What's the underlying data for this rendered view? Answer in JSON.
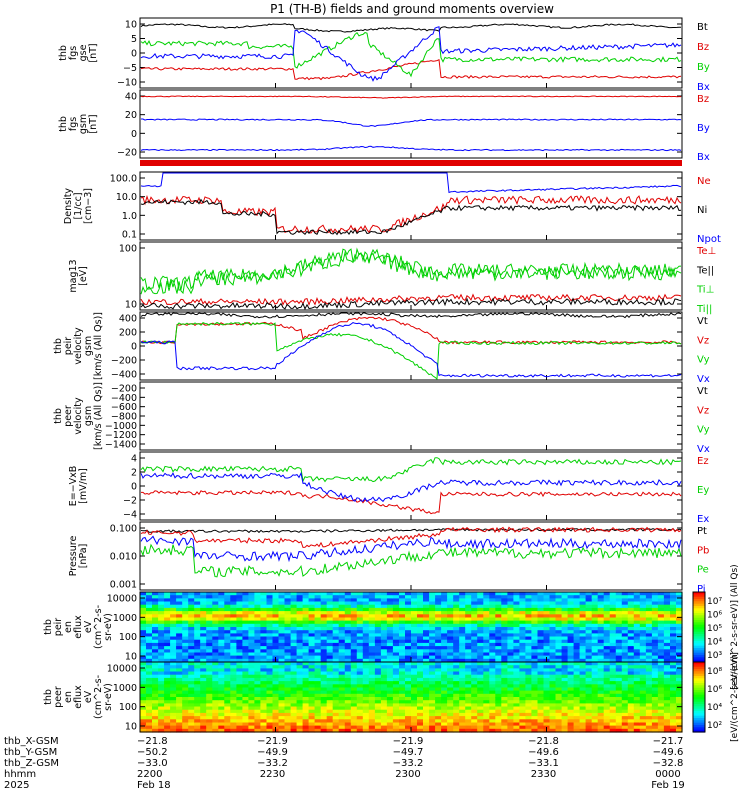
{
  "title": "P1 (TH-B) fields and ground moments overview",
  "colors": {
    "black": "#000000",
    "red": "#e00000",
    "green": "#00d000",
    "blue": "#0000ff"
  },
  "chart_data": [
    {
      "type": "line",
      "ylabel": [
        "thb",
        "fgs",
        "gse",
        "[nT]"
      ],
      "yticks": [
        "10",
        "5",
        "0",
        "−5",
        "−10"
      ],
      "ylim": [
        -11,
        11
      ],
      "series": [
        {
          "name": "Bt",
          "color": "black"
        },
        {
          "name": "Bz",
          "color": "red"
        },
        {
          "name": "By",
          "color": "green"
        },
        {
          "name": "Bx",
          "color": "blue"
        }
      ]
    },
    {
      "type": "line",
      "ylabel": [
        "thb",
        "fgs",
        "gsm",
        "[nT]"
      ],
      "yticks": [
        "40",
        "20",
        "0",
        "−20"
      ],
      "ylim": [
        -30,
        55
      ],
      "series": [
        {
          "name": "Bz",
          "color": "red"
        },
        {
          "name": "By",
          "color": "blue"
        },
        {
          "name": "Bx",
          "color": "blue"
        }
      ]
    },
    {
      "type": "line",
      "ylabel": [
        "Density",
        "[1/cc]",
        "[cm−3]"
      ],
      "yticks": [
        "100.0",
        "10.0",
        "1.0",
        "0.1"
      ],
      "log": true,
      "series": [
        {
          "name": "Ne",
          "color": "red"
        },
        {
          "name": "Ni",
          "color": "black"
        },
        {
          "name": "Npot",
          "color": "blue"
        }
      ]
    },
    {
      "type": "line",
      "ylabel": [
        "mag13",
        "[eV]"
      ],
      "yticks": [
        "100",
        "10"
      ],
      "log": true,
      "series": [
        {
          "name": "Te⊥",
          "color": "red"
        },
        {
          "name": "Te||",
          "color": "black"
        },
        {
          "name": "Ti⊥",
          "color": "green"
        },
        {
          "name": "Ti||",
          "color": "green"
        }
      ]
    },
    {
      "type": "line",
      "ylabel": [
        "thb",
        "peir",
        "velocity",
        "gsm",
        "[km/s (All Qs)]"
      ],
      "yticks": [
        "400",
        "200",
        "0",
        "−200",
        "−400"
      ],
      "ylim": [
        -460,
        460
      ],
      "series": [
        {
          "name": "Vt",
          "color": "black"
        },
        {
          "name": "Vz",
          "color": "red"
        },
        {
          "name": "Vy",
          "color": "green"
        },
        {
          "name": "Vx",
          "color": "blue"
        }
      ]
    },
    {
      "type": "line",
      "ylabel": [
        "thb",
        "peer",
        "velocity",
        "gsm",
        "[km/s (All Qs)]"
      ],
      "yticks": [
        "−200",
        "−400",
        "−600",
        "−800",
        "−1000",
        "−1200",
        "−1400"
      ],
      "ylim": [
        -1450,
        -100
      ],
      "series": [
        {
          "name": "Vt",
          "color": "black"
        },
        {
          "name": "Vz",
          "color": "red"
        },
        {
          "name": "Vy",
          "color": "green"
        },
        {
          "name": "Vx",
          "color": "blue"
        }
      ]
    },
    {
      "type": "line",
      "ylabel": [
        "E=−VxB",
        "[mV/m]"
      ],
      "yticks": [
        "4",
        "2",
        "0",
        "−2",
        "−4"
      ],
      "ylim": [
        -5,
        5
      ],
      "series": [
        {
          "name": "Ez",
          "color": "red"
        },
        {
          "name": "Ey",
          "color": "green"
        },
        {
          "name": "Ex",
          "color": "blue"
        }
      ]
    },
    {
      "type": "line",
      "ylabel": [
        "Pressure",
        "[nPa]"
      ],
      "yticks": [
        "0.100",
        "0.010",
        "0.001"
      ],
      "log": true,
      "series": [
        {
          "name": "Pt",
          "color": "black"
        },
        {
          "name": "Pb",
          "color": "red"
        },
        {
          "name": "Pe",
          "color": "green"
        },
        {
          "name": "Pi",
          "color": "blue"
        }
      ]
    },
    {
      "type": "heatmap",
      "ylabel": [
        "thb",
        "peir",
        "en",
        "eflux",
        "eV",
        "(cm^2-s-",
        "sr-eV)"
      ],
      "yticks": [
        "10000",
        "1000",
        "100",
        "10"
      ],
      "colorbar_label": "[eV/(cm^2-s-sr-eV)] (All Qs)",
      "colorbar_ticks": [
        "10⁷",
        "10⁶",
        "10⁵",
        "10⁴",
        "10³"
      ]
    },
    {
      "type": "heatmap",
      "ylabel": [
        "thb",
        "peer",
        "en",
        "eflux",
        "eV",
        "(cm^2-s-",
        "sr-eV)"
      ],
      "yticks": [
        "10000",
        "1000",
        "100",
        "10"
      ],
      "colorbar_label": "[eV/(cm^2-s-sr-eV)]",
      "colorbar_ticks": [
        "10⁸",
        "10⁶",
        "10⁴",
        "10²"
      ]
    }
  ],
  "ephemeris": {
    "row_labels": [
      "thb_X-GSM",
      "thb_Y-GSM",
      "thb_Z-GSM",
      "hhmm",
      "2025"
    ],
    "columns": [
      [
        "−21.8",
        "−50.2",
        "−33.0",
        "2200",
        "Feb 18"
      ],
      [
        "−21.9",
        "−49.9",
        "−33.2",
        "2230",
        ""
      ],
      [
        "−21.9",
        "−49.7",
        "−33.2",
        "2300",
        ""
      ],
      [
        "−21.8",
        "−49.6",
        "−33.1",
        "2330",
        ""
      ],
      [
        "−21.7",
        "−49.6",
        "−32.8",
        "0000",
        "Feb 19"
      ]
    ]
  }
}
